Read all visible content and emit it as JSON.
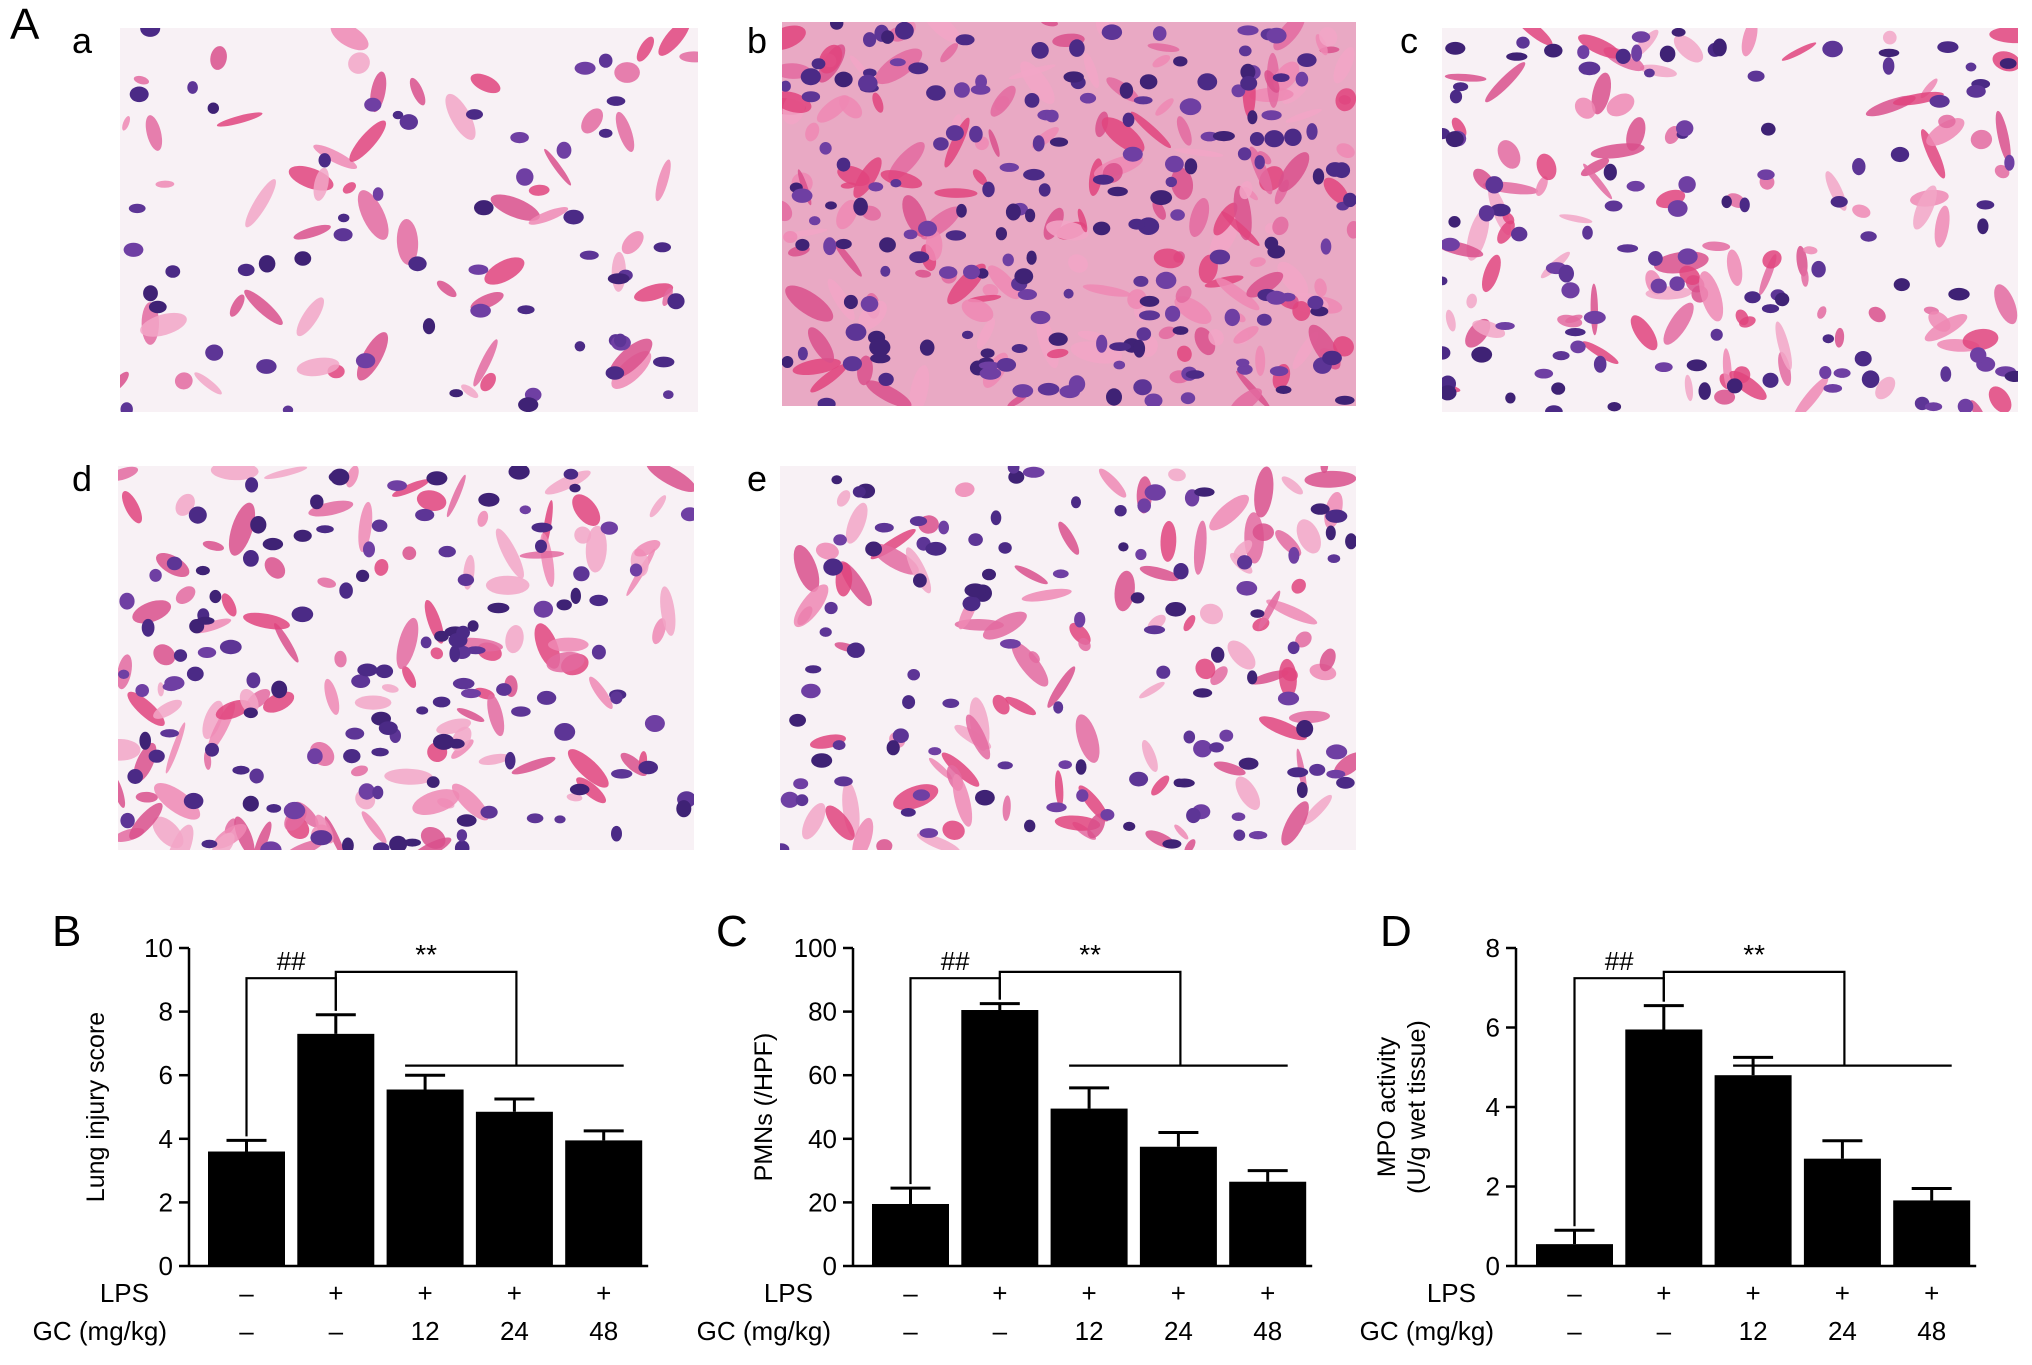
{
  "figure": {
    "panel_A_label": "A",
    "micrographs": [
      {
        "label": "a",
        "style": "sparse"
      },
      {
        "label": "b",
        "style": "dense"
      },
      {
        "label": "c",
        "style": "medium"
      },
      {
        "label": "d",
        "style": "medium-dense"
      },
      {
        "label": "e",
        "style": "medium"
      }
    ]
  },
  "treatment_rows": {
    "row1_label": "LPS",
    "row2_label": "GC (mg/kg)",
    "lps": [
      "–",
      "+",
      "+",
      "+",
      "+"
    ],
    "gc": [
      "–",
      "–",
      "12",
      "24",
      "48"
    ]
  },
  "chart_data": [
    {
      "panel": "B",
      "type": "bar",
      "ylabel": [
        "Lung injury score"
      ],
      "ylim": [
        0,
        10
      ],
      "yticks": [
        "0",
        "2",
        "4",
        "6",
        "8",
        "10"
      ],
      "values": [
        3.6,
        7.3,
        5.55,
        4.85,
        3.95
      ],
      "errors": [
        0.35,
        0.6,
        0.45,
        0.4,
        0.3
      ],
      "annotations": {
        "hash": "##",
        "stars": "**"
      },
      "bar_color": "#000000"
    },
    {
      "panel": "C",
      "type": "bar",
      "ylabel": [
        "PMNs (/HPF)"
      ],
      "ylim": [
        0,
        100
      ],
      "yticks": [
        "0",
        "20",
        "40",
        "60",
        "80",
        "100"
      ],
      "values": [
        19.5,
        80.5,
        49.5,
        37.5,
        26.5
      ],
      "errors": [
        5.0,
        2.0,
        6.5,
        4.5,
        3.5
      ],
      "annotations": {
        "hash": "##",
        "stars": "**"
      },
      "bar_color": "#000000"
    },
    {
      "panel": "D",
      "type": "bar",
      "ylabel": [
        "MPO activity",
        "(U/g wet tissue)"
      ],
      "ylim": [
        0,
        8
      ],
      "yticks": [
        "0",
        "2",
        "4",
        "6",
        "8"
      ],
      "values": [
        0.55,
        5.95,
        4.8,
        2.7,
        1.65
      ],
      "errors": [
        0.35,
        0.6,
        0.45,
        0.45,
        0.3
      ],
      "annotations": {
        "hash": "##",
        "stars": "**"
      },
      "bar_color": "#000000"
    }
  ]
}
